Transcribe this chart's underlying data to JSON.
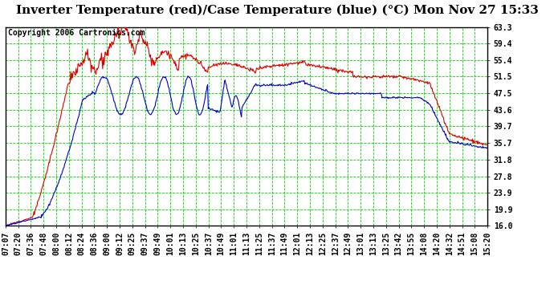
{
  "title": "Inverter Temperature (red)/Case Temperature (blue) (°C) Mon Nov 27 15:33",
  "copyright": "Copyright 2006 Cartronics.com",
  "yticks": [
    16.0,
    19.9,
    23.9,
    27.8,
    31.8,
    35.7,
    39.7,
    43.6,
    47.5,
    51.5,
    55.4,
    59.4,
    63.3
  ],
  "ymin": 16.0,
  "ymax": 63.3,
  "xtick_labels": [
    "07:07",
    "07:20",
    "07:36",
    "07:48",
    "08:00",
    "08:12",
    "08:24",
    "08:36",
    "09:00",
    "09:12",
    "09:25",
    "09:37",
    "09:49",
    "10:01",
    "10:13",
    "10:25",
    "10:37",
    "10:49",
    "11:01",
    "11:13",
    "11:25",
    "11:37",
    "11:49",
    "12:01",
    "12:13",
    "12:25",
    "12:37",
    "12:49",
    "13:01",
    "13:13",
    "13:25",
    "13:42",
    "13:55",
    "14:08",
    "14:20",
    "14:32",
    "14:51",
    "15:08",
    "15:20"
  ],
  "bg_color": "#ffffff",
  "plot_bg_color": "#ffffff",
  "grid_color": "#00dd00",
  "line_red": "#dd0000",
  "line_blue": "#0000cc",
  "title_fontsize": 11,
  "tick_fontsize": 7,
  "copyright_fontsize": 7
}
